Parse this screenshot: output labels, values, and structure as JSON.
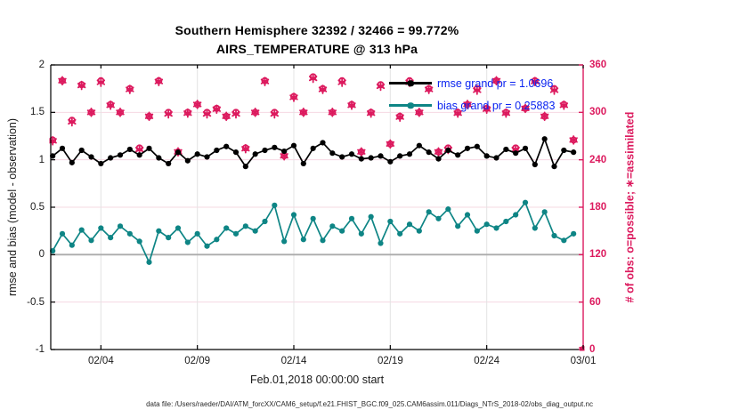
{
  "chart": {
    "title_line1": "Southern Hemisphere 32392 / 32466 = 99.772%",
    "title_line2": "AIRS_TEMPERATURE @ 313 hPa",
    "xlabel": "Feb.01,2018 00:00:00 start",
    "ylabel_left": "rmse and bias (model - observation)",
    "ylabel_right": "# of obs: o=possible; ∗=assimilated",
    "footer": "data file: /Users/raeder/DAI/ATM_forcXX/CAM6_setup/f.e21.FHIST_BGC.f09_025.CAM6assim.011/Diags_NTrS_2018-02/obs_diag_output.nc",
    "legend": [
      {
        "label": "rmse grand pr = 1.0696",
        "color": "#000000"
      },
      {
        "label": "bias grand pr = 0.25883",
        "color": "#0e8585"
      }
    ],
    "colors": {
      "rmse": "#000000",
      "bias": "#0e8585",
      "obs": "#dc1a5e",
      "legend_text": "#0b24f0",
      "grid_h": "#f6d8e2",
      "grid_v": "#e4e4e4",
      "zero_line": "#ababab",
      "axis_left": "#000000",
      "axis_right": "#dc1a5e"
    }
  },
  "chart_data": {
    "type": "line",
    "title": "Southern Hemisphere 32392 / 32466 = 99.772% | AIRS_TEMPERATURE @ 313 hPa",
    "xlabel": "Feb.01,2018 00:00:00 start",
    "x_axis": {
      "range_days": [
        0.4,
        28
      ],
      "tick_days": [
        3,
        8,
        13,
        18,
        23,
        28
      ],
      "tick_labels": [
        "02/04",
        "02/09",
        "02/14",
        "02/19",
        "02/24",
        "03/01"
      ]
    },
    "y_left": {
      "label": "rmse and bias (model - observation)",
      "ticks": [
        -1,
        -0.5,
        0,
        0.5,
        1,
        1.5,
        2
      ],
      "tick_labels": [
        "-1",
        "-0.5",
        "0",
        "0.5",
        "1",
        "1.5",
        "2"
      ],
      "range": [
        -1,
        2
      ]
    },
    "y_right": {
      "label": "# of obs: o=possible; ∗=assimilated",
      "ticks": [
        0,
        60,
        120,
        180,
        240,
        300,
        360
      ],
      "tick_labels": [
        "0",
        "60",
        "120",
        "180",
        "240",
        "300",
        "360"
      ],
      "range": [
        0,
        360
      ]
    },
    "grid": true,
    "legend_position": "top-right-inside",
    "series": [
      {
        "name": "rmse",
        "axis": "left",
        "marker": "filled-circle",
        "line": true,
        "color": "#000000",
        "x_start_day": 0.5,
        "x_step_days": 0.5,
        "values": [
          1.04,
          1.12,
          0.97,
          1.1,
          1.03,
          0.96,
          1.02,
          1.05,
          1.11,
          1.05,
          1.12,
          1.02,
          0.96,
          1.08,
          0.99,
          1.06,
          1.03,
          1.1,
          1.14,
          1.08,
          0.93,
          1.06,
          1.1,
          1.13,
          1.09,
          1.15,
          0.96,
          1.12,
          1.18,
          1.07,
          1.03,
          1.06,
          1.01,
          1.02,
          1.04,
          0.98,
          1.04,
          1.06,
          1.15,
          1.08,
          1.01,
          1.1,
          1.05,
          1.12,
          1.14,
          1.04,
          1.02,
          1.11,
          1.07,
          1.12,
          0.95,
          1.22,
          0.93,
          1.1,
          1.08
        ]
      },
      {
        "name": "bias",
        "axis": "left",
        "marker": "filled-circle",
        "line": true,
        "color": "#0e8585",
        "x_start_day": 0.5,
        "x_step_days": 0.5,
        "values": [
          0.04,
          0.22,
          0.1,
          0.26,
          0.15,
          0.28,
          0.18,
          0.3,
          0.22,
          0.14,
          -0.08,
          0.25,
          0.18,
          0.28,
          0.13,
          0.22,
          0.09,
          0.16,
          0.28,
          0.22,
          0.3,
          0.25,
          0.35,
          0.52,
          0.14,
          0.42,
          0.16,
          0.38,
          0.15,
          0.3,
          0.25,
          0.38,
          0.22,
          0.4,
          0.12,
          0.35,
          0.22,
          0.32,
          0.25,
          0.45,
          0.38,
          0.48,
          0.3,
          0.42,
          0.25,
          0.32,
          0.28,
          0.35,
          0.42,
          0.55,
          0.28,
          0.45,
          0.2,
          0.15,
          0.22
        ]
      },
      {
        "name": "obs_possible",
        "axis": "right",
        "marker": "o",
        "line": false,
        "color": "#dc1a5e",
        "x_start_day": 0.5,
        "x_step_days": 0.5,
        "values": [
          265,
          340,
          290,
          335,
          300,
          340,
          310,
          300,
          330,
          255,
          295,
          340,
          300,
          250,
          300,
          310,
          300,
          305,
          295,
          300,
          255,
          300,
          340,
          300,
          245,
          320,
          300,
          345,
          330,
          300,
          340,
          310,
          250,
          300,
          335,
          260,
          295,
          340,
          300,
          330,
          250,
          255,
          300,
          310,
          330,
          305,
          340,
          300,
          255,
          305,
          340,
          295,
          330,
          310,
          265,
          0
        ]
      },
      {
        "name": "obs_assimilated",
        "axis": "right",
        "marker": "asterisk",
        "line": false,
        "color": "#dc1a5e",
        "x_start_day": 0.5,
        "x_step_days": 0.5,
        "values": [
          264,
          340,
          288,
          334,
          300,
          338,
          309,
          300,
          329,
          253,
          295,
          339,
          298,
          250,
          299,
          310,
          298,
          304,
          295,
          298,
          254,
          300,
          339,
          298,
          245,
          319,
          300,
          343,
          329,
          300,
          338,
          309,
          250,
          299,
          333,
          260,
          294,
          338,
          300,
          329,
          250,
          253,
          299,
          310,
          328,
          304,
          340,
          299,
          253,
          305,
          339,
          295,
          328,
          309,
          265,
          0
        ]
      }
    ]
  }
}
